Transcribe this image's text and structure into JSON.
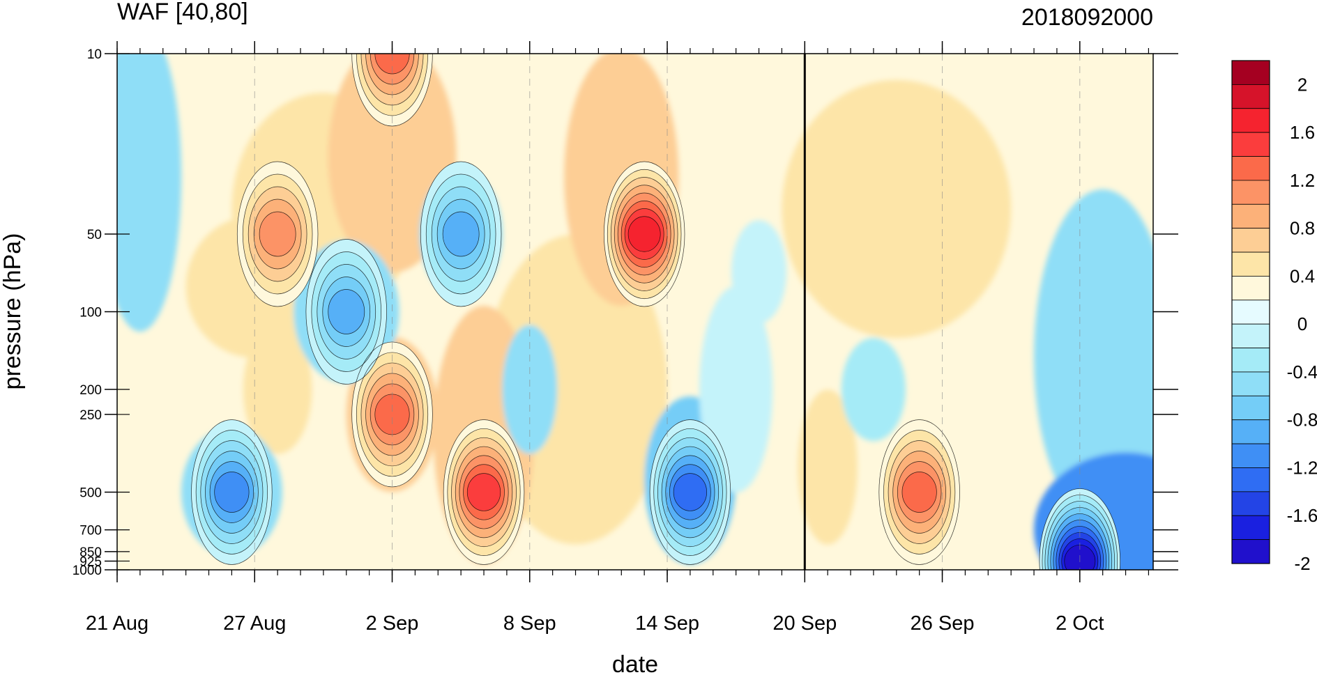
{
  "chart_data": {
    "type": "heatmap",
    "title_left": "WAF [40,80]",
    "title_right": "2018092000",
    "xlabel": "date",
    "ylabel": "pressure (hPa)",
    "x_ticks": [
      "21 Aug",
      "27 Aug",
      "2 Sep",
      "8 Sep",
      "14 Sep",
      "20 Sep",
      "26 Sep",
      "2 Oct"
    ],
    "x_range": [
      "21 Aug",
      "6 Oct"
    ],
    "y_ticks": [
      10,
      50,
      100,
      200,
      250,
      500,
      700,
      850,
      925,
      1000
    ],
    "y_scale": "log",
    "y_range": [
      1000,
      10
    ],
    "marked_date": "20 Sep",
    "colorbar": {
      "tick_labels": [
        "2",
        "1.6",
        "1.2",
        "0.8",
        "0.4",
        "0",
        "-0.4",
        "-0.8",
        "-1.2",
        "-1.6",
        "-2"
      ],
      "colors": [
        "#a50021",
        "#d6132a",
        "#f5232f",
        "#fb3d3d",
        "#fb6a4a",
        "#fc9366",
        "#fcb179",
        "#fdce95",
        "#fde5a8",
        "#fff8dc",
        "#e6fbff",
        "#c4f3fa",
        "#a5ebf7",
        "#8fdef7",
        "#74cdf7",
        "#56b0f7",
        "#3f8ff5",
        "#2f6df3",
        "#2344e6",
        "#1a20e0",
        "#2010cc"
      ]
    },
    "contour_interval": 0.2,
    "features": [
      {
        "date": "13 Sep",
        "level": 50,
        "value": 1.6
      },
      {
        "date": "6 Sep",
        "level": 500,
        "value": 1.4
      },
      {
        "date": "2 Sep",
        "level": 10,
        "value": 1.2
      },
      {
        "date": "2 Sep",
        "level": 250,
        "value": 1.2
      },
      {
        "date": "25 Sep",
        "level": 500,
        "value": 1.2
      },
      {
        "date": "28 Aug",
        "level": 50,
        "value": 1.0
      },
      {
        "date": "2 Oct",
        "level": 925,
        "value": -2.0
      },
      {
        "date": "15 Sep",
        "level": 500,
        "value": -1.4
      },
      {
        "date": "26 Aug",
        "level": 500,
        "value": -1.2
      },
      {
        "date": "31 Aug",
        "level": 100,
        "value": -1.0
      },
      {
        "date": "5 Sep",
        "level": 50,
        "value": -1.0
      }
    ]
  }
}
